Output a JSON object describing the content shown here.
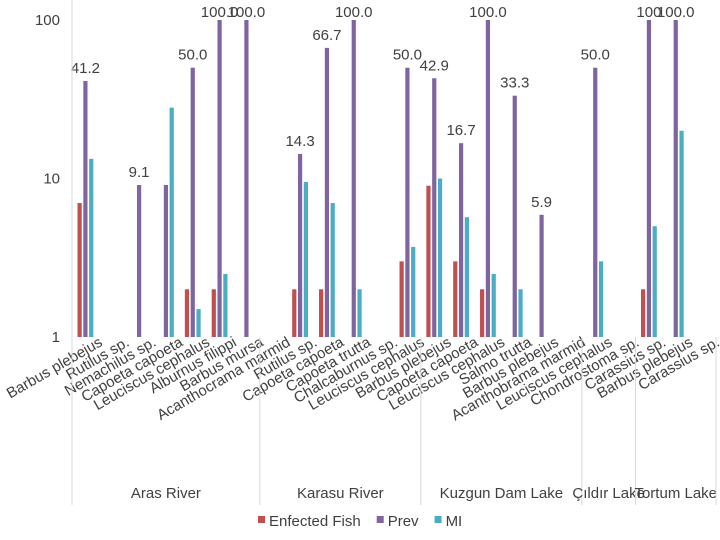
{
  "chart_data": {
    "type": "bar",
    "scale": "log",
    "ylim": [
      1,
      100
    ],
    "yticks": [
      "1",
      "10",
      "100"
    ],
    "series": [
      {
        "name": "Enfected Fish",
        "color": "#c0504d"
      },
      {
        "name": "Prev",
        "color": "#8064a2"
      },
      {
        "name": "MI",
        "color": "#4bacc6"
      }
    ],
    "groups": [
      {
        "name": "Aras River",
        "categories": [
          {
            "name": "Barbus plebejus",
            "values": [
              7,
              41.2,
              13.3
            ],
            "labels": [
              "",
              "41.2",
              ""
            ]
          },
          {
            "name": "Rutilus sp.",
            "values": [
              null,
              null,
              null
            ],
            "labels": [
              "",
              "",
              ""
            ]
          },
          {
            "name": "Nemachilus sp.",
            "values": [
              null,
              9.1,
              null
            ],
            "labels": [
              "",
              "9.1",
              ""
            ]
          },
          {
            "name": "Capoeta capoeta",
            "values": [
              null,
              9.1,
              28
            ],
            "labels": [
              "",
              "",
              ""
            ]
          },
          {
            "name": "Leuciscus cephalus",
            "values": [
              2,
              50.0,
              1.5
            ],
            "labels": [
              "",
              "50.0",
              ""
            ]
          },
          {
            "name": "Alburnus filippi",
            "values": [
              2,
              100.0,
              2.5
            ],
            "labels": [
              "",
              "100.0",
              ""
            ]
          },
          {
            "name": "Barbus mursa",
            "values": [
              null,
              100.0,
              null
            ],
            "labels": [
              "",
              "100.0",
              ""
            ]
          }
        ]
      },
      {
        "name": "Karasu River",
        "categories": [
          {
            "name": "Acanthocrama marmid",
            "values": [
              null,
              null,
              null
            ],
            "labels": [
              "",
              "",
              ""
            ]
          },
          {
            "name": "Rutilus sp.",
            "values": [
              2,
              14.3,
              9.5
            ],
            "labels": [
              "",
              "14.3",
              ""
            ]
          },
          {
            "name": "Capoeta capoeta",
            "values": [
              2,
              66.7,
              7
            ],
            "labels": [
              "",
              "66.7",
              ""
            ]
          },
          {
            "name": "Capoeta trutta",
            "values": [
              null,
              100.0,
              2
            ],
            "labels": [
              "",
              "100.0",
              ""
            ]
          },
          {
            "name": "Chalcaburnus sp.",
            "values": [
              null,
              null,
              null
            ],
            "labels": [
              "",
              "",
              ""
            ]
          },
          {
            "name": "Leuciscus cephalus",
            "values": [
              3,
              50.0,
              3.7
            ],
            "labels": [
              "",
              "50.0",
              ""
            ]
          }
        ]
      },
      {
        "name": "Kuzgun Dam  Lake",
        "categories": [
          {
            "name": "Barbus plebejus",
            "values": [
              9,
              42.9,
              10
            ],
            "labels": [
              "",
              "42.9",
              ""
            ]
          },
          {
            "name": "Capoeta capoeta",
            "values": [
              3,
              16.7,
              5.7
            ],
            "labels": [
              "",
              "16.7",
              ""
            ]
          },
          {
            "name": "Leuciscus cephalus",
            "values": [
              2,
              100.0,
              2.5
            ],
            "labels": [
              "",
              "100.0",
              ""
            ]
          },
          {
            "name": "Salmo trutta",
            "values": [
              null,
              33.3,
              2
            ],
            "labels": [
              "",
              "33.3",
              ""
            ]
          },
          {
            "name": "Barbus plebejus",
            "values": [
              null,
              5.9,
              null
            ],
            "labels": [
              "",
              "5.9",
              ""
            ]
          },
          {
            "name": "Acanthobrama marmid",
            "values": [
              null,
              null,
              null
            ],
            "labels": [
              "",
              "",
              ""
            ]
          }
        ]
      },
      {
        "name": "Çıldır Lake",
        "categories": [
          {
            "name": "Leuciscus cephalus",
            "values": [
              null,
              50.0,
              3
            ],
            "labels": [
              "",
              "50.0",
              ""
            ]
          },
          {
            "name": "Chondrostoma sp.",
            "values": [
              null,
              null,
              null
            ],
            "labels": [
              "",
              "",
              ""
            ]
          }
        ]
      },
      {
        "name": "Tortum Lake",
        "categories": [
          {
            "name": "Carassius sp.",
            "values": [
              2,
              100,
              5
            ],
            "labels": [
              "",
              "100",
              ""
            ]
          },
          {
            "name": "Barbus plebejus",
            "values": [
              null,
              100.0,
              20
            ],
            "labels": [
              "",
              "100.0",
              ""
            ]
          },
          {
            "name": "Carassius sp.",
            "values": [
              null,
              null,
              null
            ],
            "labels": [
              "",
              "",
              ""
            ]
          }
        ]
      }
    ]
  }
}
